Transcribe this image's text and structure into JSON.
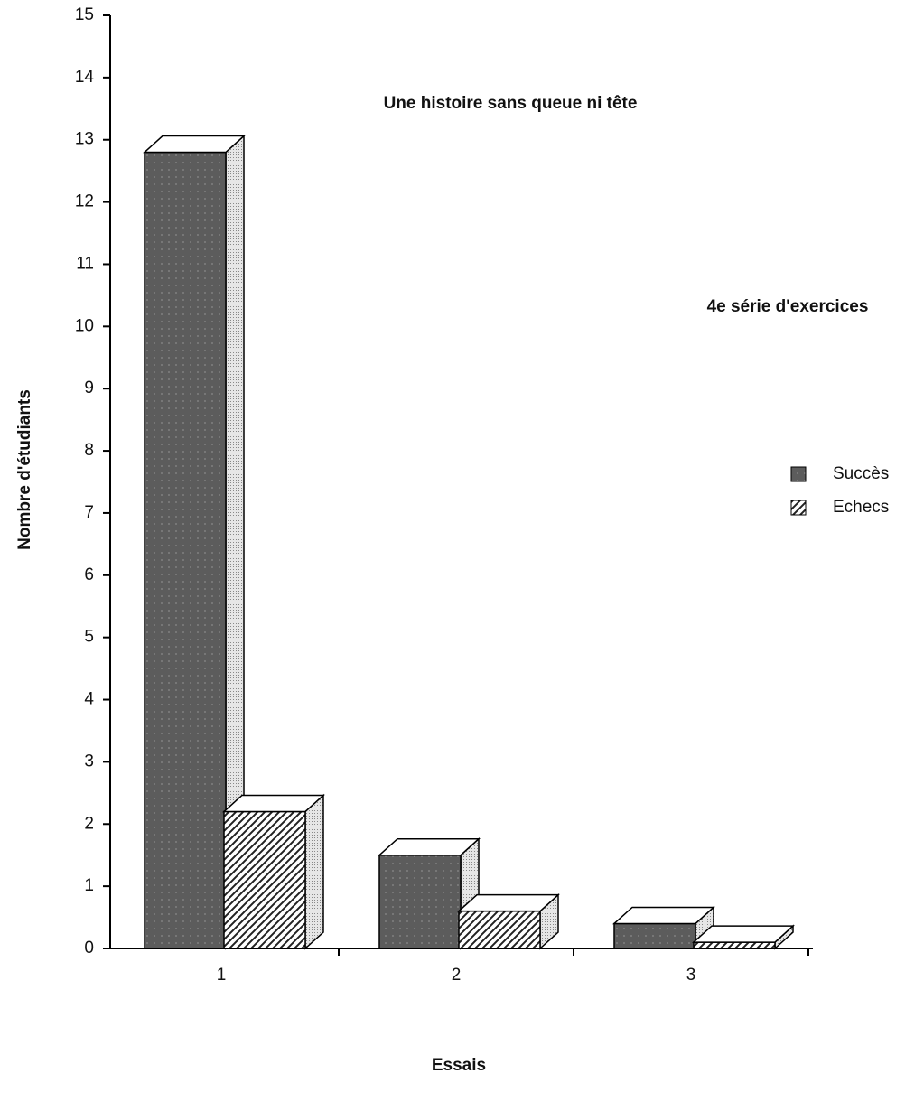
{
  "chart_data": {
    "type": "bar3d",
    "title": "Une histoire sans queue ni tête",
    "subtitle": "4e série d'exercices",
    "xlabel": "Essais",
    "ylabel": "Nombre d'étudiants",
    "categories": [
      "1",
      "2",
      "3"
    ],
    "series": [
      {
        "name": "Succès",
        "color": "#5c5c5c",
        "values": [
          12.8,
          1.5,
          0.4
        ]
      },
      {
        "name": "Echecs",
        "color": "#222222",
        "values": [
          2.2,
          0.6,
          0.1
        ]
      }
    ],
    "ylim": [
      0,
      15
    ],
    "yticks": [
      0,
      1,
      2,
      3,
      4,
      5,
      6,
      7,
      8,
      9,
      10,
      11,
      12,
      13,
      14,
      15
    ],
    "legend": "right"
  }
}
